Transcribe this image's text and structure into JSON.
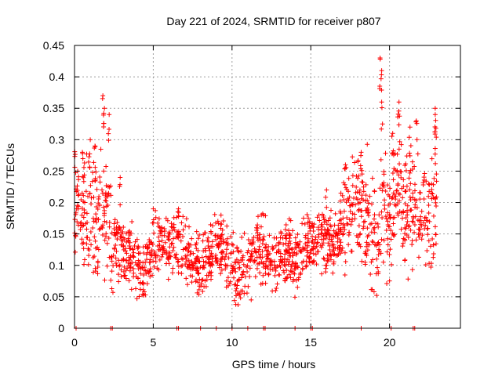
{
  "chart_data": {
    "type": "scatter",
    "title": "Day 221 of 2024, SRMTID for receiver p807",
    "xlabel": "GPS time / hours",
    "ylabel": "SRMTID / TECUs",
    "xlim": [
      0,
      24.5
    ],
    "ylim": [
      0,
      0.45
    ],
    "x_ticks": [
      0,
      5,
      10,
      15,
      20
    ],
    "x_tick_labels": [
      "0",
      "5",
      "10",
      "15",
      "20"
    ],
    "y_ticks": [
      0,
      0.05,
      0.1,
      0.15,
      0.2,
      0.25,
      0.3,
      0.35,
      0.4,
      0.45
    ],
    "y_tick_labels": [
      "0",
      "0.05",
      "0.1",
      "0.15",
      "0.2",
      "0.25",
      "0.3",
      "0.35",
      "0.4",
      "0.45"
    ],
    "grid": true,
    "marker": "+",
    "color": "#ff0000",
    "trend": [
      [
        0.0,
        0.2
      ],
      [
        0.5,
        0.19
      ],
      [
        1.0,
        0.19
      ],
      [
        1.5,
        0.18
      ],
      [
        2.0,
        0.19
      ],
      [
        2.5,
        0.15
      ],
      [
        3.0,
        0.13
      ],
      [
        3.5,
        0.12
      ],
      [
        4.0,
        0.11
      ],
      [
        4.3,
        0.08
      ],
      [
        4.7,
        0.11
      ],
      [
        5.0,
        0.13
      ],
      [
        5.5,
        0.14
      ],
      [
        6.0,
        0.13
      ],
      [
        6.5,
        0.14
      ],
      [
        7.0,
        0.12
      ],
      [
        7.5,
        0.11
      ],
      [
        8.0,
        0.1
      ],
      [
        8.5,
        0.11
      ],
      [
        9.0,
        0.13
      ],
      [
        9.5,
        0.14
      ],
      [
        10.0,
        0.1
      ],
      [
        10.5,
        0.08
      ],
      [
        11.0,
        0.1
      ],
      [
        11.5,
        0.12
      ],
      [
        12.0,
        0.12
      ],
      [
        12.5,
        0.1
      ],
      [
        13.0,
        0.11
      ],
      [
        13.5,
        0.12
      ],
      [
        14.0,
        0.11
      ],
      [
        14.5,
        0.12
      ],
      [
        15.0,
        0.13
      ],
      [
        15.5,
        0.15
      ],
      [
        16.0,
        0.14
      ],
      [
        16.5,
        0.13
      ],
      [
        17.0,
        0.16
      ],
      [
        17.5,
        0.19
      ],
      [
        18.0,
        0.2
      ],
      [
        18.5,
        0.17
      ],
      [
        19.0,
        0.15
      ],
      [
        19.5,
        0.19
      ],
      [
        20.0,
        0.14
      ],
      [
        20.5,
        0.24
      ],
      [
        21.0,
        0.18
      ],
      [
        21.5,
        0.21
      ],
      [
        22.0,
        0.19
      ],
      [
        22.5,
        0.17
      ],
      [
        23.0,
        0.2
      ]
    ],
    "peaks": [
      {
        "x": 0.2,
        "y": 0.25
      },
      {
        "x": 0.5,
        "y": 0.28
      },
      {
        "x": 1.0,
        "y": 0.3
      },
      {
        "x": 1.3,
        "y": 0.29
      },
      {
        "x": 1.8,
        "y": 0.37
      },
      {
        "x": 1.9,
        "y": 0.35
      },
      {
        "x": 2.2,
        "y": 0.34
      },
      {
        "x": 2.9,
        "y": 0.24
      },
      {
        "x": 5.0,
        "y": 0.19
      },
      {
        "x": 6.6,
        "y": 0.19
      },
      {
        "x": 9.3,
        "y": 0.18
      },
      {
        "x": 12.0,
        "y": 0.18
      },
      {
        "x": 16.0,
        "y": 0.22
      },
      {
        "x": 17.2,
        "y": 0.26
      },
      {
        "x": 18.2,
        "y": 0.28
      },
      {
        "x": 19.4,
        "y": 0.43
      },
      {
        "x": 19.5,
        "y": 0.41
      },
      {
        "x": 19.5,
        "y": 0.36
      },
      {
        "x": 20.2,
        "y": 0.31
      },
      {
        "x": 20.6,
        "y": 0.36
      },
      {
        "x": 21.3,
        "y": 0.32
      },
      {
        "x": 21.7,
        "y": 0.33
      },
      {
        "x": 22.9,
        "y": 0.34
      },
      {
        "x": 22.9,
        "y": 0.35
      }
    ],
    "zero_points_x": [
      0.1,
      2.3,
      2.4,
      6.5,
      6.6,
      8.0,
      9.0,
      10.0,
      11.0,
      12.0,
      12.1,
      14.0,
      15.0,
      15.1,
      18.2,
      20.1,
      21.5,
      21.6
    ]
  }
}
